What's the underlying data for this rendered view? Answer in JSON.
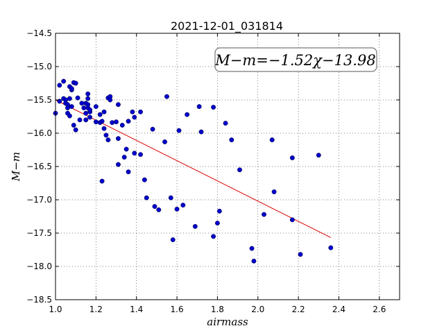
{
  "chart_data": {
    "type": "scatter",
    "title": "2021-12-01_031814",
    "xlabel": "airmass",
    "ylabel": "M−m",
    "xlim": [
      1.0,
      2.7
    ],
    "ylim": [
      -18.5,
      -14.5
    ],
    "y_inverted": false,
    "grid": true,
    "grid_style": "dotted",
    "xticks": [
      "1.0",
      "1.2",
      "1.4",
      "1.6",
      "1.8",
      "2.0",
      "2.2",
      "2.4",
      "2.6"
    ],
    "yticks": [
      "−14.5",
      "−15.0",
      "−15.5",
      "−16.0",
      "−16.5",
      "−17.0",
      "−17.5",
      "−18.0",
      "−18.5"
    ],
    "annotation": "M−m=−1.52χ−13.98",
    "colors": {
      "points": "#0000cc",
      "fit": "#dd0000"
    },
    "fit_line": {
      "slope": -1.52,
      "intercept": -13.98,
      "x_range": [
        1.0,
        2.36
      ]
    },
    "points": [
      [
        1.0,
        -15.7
      ],
      [
        1.02,
        -15.28
      ],
      [
        1.02,
        -15.52
      ],
      [
        1.04,
        -15.48
      ],
      [
        1.04,
        -15.22
      ],
      [
        1.05,
        -15.5
      ],
      [
        1.05,
        -15.55
      ],
      [
        1.06,
        -15.57
      ],
      [
        1.06,
        -15.62
      ],
      [
        1.06,
        -15.7
      ],
      [
        1.07,
        -15.74
      ],
      [
        1.07,
        -15.3
      ],
      [
        1.07,
        -15.48
      ],
      [
        1.08,
        -15.35
      ],
      [
        1.08,
        -15.6
      ],
      [
        1.08,
        -15.33
      ],
      [
        1.09,
        -15.24
      ],
      [
        1.09,
        -15.88
      ],
      [
        1.1,
        -15.95
      ],
      [
        1.1,
        -15.25
      ],
      [
        1.11,
        -15.47
      ],
      [
        1.12,
        -15.8
      ],
      [
        1.13,
        -15.55
      ],
      [
        1.14,
        -15.62
      ],
      [
        1.15,
        -15.55
      ],
      [
        1.15,
        -15.7
      ],
      [
        1.15,
        -15.8
      ],
      [
        1.16,
        -15.41
      ],
      [
        1.16,
        -15.48
      ],
      [
        1.16,
        -15.57
      ],
      [
        1.16,
        -15.62
      ],
      [
        1.17,
        -15.68
      ],
      [
        1.17,
        -15.76
      ],
      [
        1.17,
        -15.65
      ],
      [
        1.2,
        -15.6
      ],
      [
        1.2,
        -15.83
      ],
      [
        1.22,
        -15.72
      ],
      [
        1.22,
        -15.84
      ],
      [
        1.23,
        -15.82
      ],
      [
        1.23,
        -16.72
      ],
      [
        1.24,
        -15.68
      ],
      [
        1.24,
        -15.93
      ],
      [
        1.25,
        -16.03
      ],
      [
        1.26,
        -16.1
      ],
      [
        1.26,
        -15.47
      ],
      [
        1.27,
        -15.5
      ],
      [
        1.27,
        -15.45
      ],
      [
        1.28,
        -15.84
      ],
      [
        1.3,
        -15.83
      ],
      [
        1.31,
        -15.57
      ],
      [
        1.31,
        -16.47
      ],
      [
        1.31,
        -16.08
      ],
      [
        1.33,
        -15.88
      ],
      [
        1.34,
        -16.36
      ],
      [
        1.35,
        -16.24
      ],
      [
        1.36,
        -15.82
      ],
      [
        1.36,
        -16.58
      ],
      [
        1.38,
        -15.68
      ],
      [
        1.39,
        -15.76
      ],
      [
        1.39,
        -16.3
      ],
      [
        1.42,
        -15.68
      ],
      [
        1.42,
        -16.32
      ],
      [
        1.44,
        -16.7
      ],
      [
        1.45,
        -16.97
      ],
      [
        1.48,
        -15.94
      ],
      [
        1.49,
        -17.1
      ],
      [
        1.51,
        -17.15
      ],
      [
        1.54,
        -16.13
      ],
      [
        1.55,
        -15.45
      ],
      [
        1.57,
        -16.97
      ],
      [
        1.58,
        -17.6
      ],
      [
        1.6,
        -17.14
      ],
      [
        1.61,
        -15.96
      ],
      [
        1.63,
        -17.08
      ],
      [
        1.65,
        -15.72
      ],
      [
        1.69,
        -17.4
      ],
      [
        1.71,
        -15.6
      ],
      [
        1.72,
        -15.98
      ],
      [
        1.78,
        -15.61
      ],
      [
        1.78,
        -17.55
      ],
      [
        1.8,
        -17.35
      ],
      [
        1.81,
        -17.17
      ],
      [
        1.84,
        -15.85
      ],
      [
        1.87,
        -16.1
      ],
      [
        1.91,
        -16.55
      ],
      [
        1.97,
        -17.73
      ],
      [
        1.98,
        -17.92
      ],
      [
        2.03,
        -17.22
      ],
      [
        2.07,
        -16.1
      ],
      [
        2.08,
        -16.88
      ],
      [
        2.17,
        -16.37
      ],
      [
        2.17,
        -17.3
      ],
      [
        2.21,
        -17.82
      ],
      [
        2.3,
        -16.33
      ],
      [
        2.36,
        -17.72
      ]
    ]
  }
}
